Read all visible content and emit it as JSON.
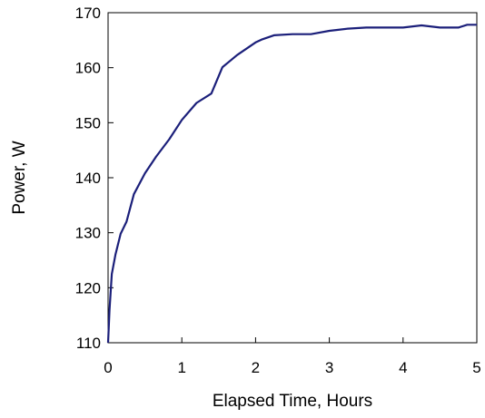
{
  "chart_data": {
    "type": "line",
    "title": "",
    "xlabel": "Elapsed Time, Hours",
    "ylabel": "Power, W",
    "xlim": [
      0,
      5
    ],
    "ylim": [
      110,
      170
    ],
    "x_ticks": [
      0,
      1,
      2,
      3,
      4,
      5
    ],
    "y_ticks": [
      110,
      120,
      130,
      140,
      150,
      160,
      170
    ],
    "grid": false,
    "legend": "none",
    "series": [
      {
        "color": "#1b1f7a",
        "x": [
          0,
          0.02,
          0.05,
          0.1,
          0.17,
          0.25,
          0.35,
          0.5,
          0.65,
          0.83,
          1.0,
          1.2,
          1.4,
          1.55,
          1.75,
          2.0,
          2.08,
          2.25,
          2.5,
          2.75,
          3.0,
          3.25,
          3.5,
          3.75,
          4.0,
          4.25,
          4.5,
          4.75,
          4.87,
          5.0
        ],
        "y": [
          110,
          116,
          122.5,
          126,
          129.8,
          132.0,
          137.0,
          140.8,
          143.8,
          147.0,
          150.5,
          153.6,
          155.3,
          160.1,
          162.3,
          164.6,
          165.1,
          165.9,
          166.1,
          166.1,
          166.7,
          167.1,
          167.3,
          167.3,
          167.3,
          167.7,
          167.3,
          167.3,
          167.8,
          167.8
        ]
      }
    ]
  }
}
